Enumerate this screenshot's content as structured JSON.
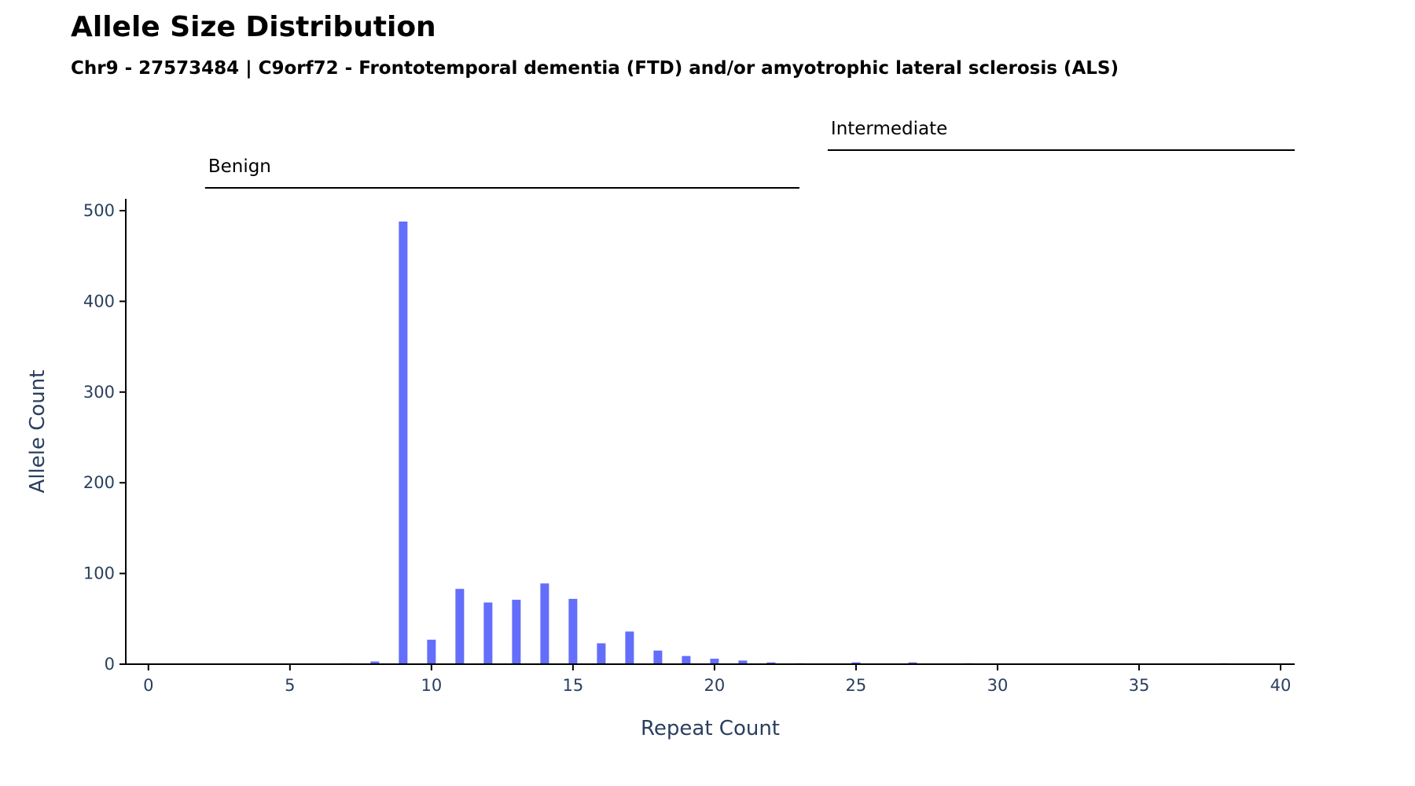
{
  "header": {
    "title": "Allele Size Distribution",
    "subtitle": "Chr9 - 27573484 | C9orf72 - Frontotemporal dementia (FTD) and/or amyotrophic lateral sclerosis (ALS)"
  },
  "colors": {
    "bar": "#636efa",
    "axis": "#000000",
    "tick_text": "#2a3f5f"
  },
  "chart_data": {
    "type": "bar",
    "title": "Allele Size Distribution",
    "subtitle": "Chr9 - 27573484 | C9orf72 - Frontotemporal dementia (FTD) and/or amyotrophic lateral sclerosis (ALS)",
    "xlabel": "Repeat Count",
    "ylabel": "Allele Count",
    "xlim": [
      -0.8,
      40.5
    ],
    "ylim": [
      0,
      513
    ],
    "xticks": [
      0,
      5,
      10,
      15,
      20,
      25,
      30,
      35,
      40
    ],
    "yticks": [
      0,
      100,
      200,
      300,
      400,
      500
    ],
    "grid": false,
    "x": [
      7,
      8,
      9,
      10,
      11,
      12,
      13,
      14,
      15,
      16,
      17,
      18,
      19,
      20,
      21,
      22,
      23,
      25,
      27,
      29,
      38
    ],
    "values": [
      1,
      3,
      488,
      27,
      83,
      68,
      71,
      89,
      72,
      23,
      36,
      15,
      9,
      6,
      4,
      2,
      1,
      2,
      2,
      1,
      1
    ],
    "ranges": [
      {
        "label": "Benign",
        "start": 2,
        "end": 23
      },
      {
        "label": "Intermediate",
        "start": 24,
        "end": 40.5
      }
    ]
  }
}
